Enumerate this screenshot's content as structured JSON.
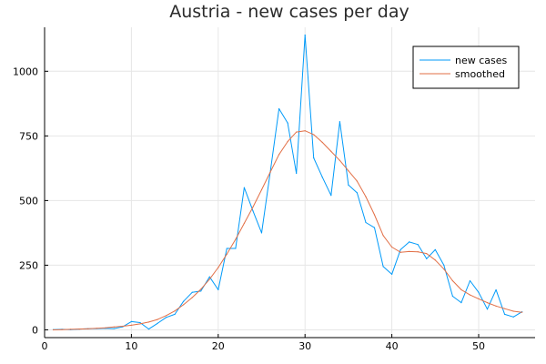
{
  "chart_data": {
    "type": "line",
    "title": "Austria - new cases per day",
    "xlabel": "",
    "ylabel": "",
    "xlim": [
      0,
      56.5
    ],
    "ylim": [
      -30,
      1170
    ],
    "xticks": [
      0,
      10,
      20,
      30,
      40,
      50
    ],
    "yticks": [
      0,
      250,
      500,
      750,
      1000
    ],
    "grid": true,
    "legend_position": "top-right",
    "series": [
      {
        "name": "new cases",
        "color": "#009AF9",
        "x": [
          1,
          2,
          3,
          4,
          5,
          6,
          7,
          8,
          9,
          10,
          11,
          12,
          13,
          14,
          15,
          16,
          17,
          18,
          19,
          20,
          21,
          22,
          23,
          24,
          25,
          26,
          27,
          28,
          29,
          30,
          31,
          32,
          33,
          34,
          35,
          36,
          37,
          38,
          39,
          40,
          41,
          42,
          43,
          44,
          45,
          46,
          47,
          48,
          49,
          50,
          51,
          52,
          53,
          54,
          55
        ],
        "values": [
          1,
          2,
          1,
          3,
          4,
          5,
          6,
          5,
          12,
          32,
          28,
          3,
          25,
          48,
          60,
          110,
          145,
          150,
          205,
          155,
          315,
          315,
          550,
          460,
          375,
          610,
          855,
          800,
          605,
          1140,
          665,
          590,
          520,
          805,
          560,
          530,
          415,
          395,
          245,
          215,
          310,
          340,
          330,
          275,
          310,
          250,
          130,
          105,
          190,
          145,
          80,
          155,
          60,
          50,
          70
        ]
      },
      {
        "name": "smoothed",
        "color": "#E26F46",
        "x": [
          1,
          2,
          3,
          4,
          5,
          6,
          7,
          8,
          9,
          10,
          11,
          12,
          13,
          14,
          15,
          16,
          17,
          18,
          19,
          20,
          21,
          22,
          23,
          24,
          25,
          26,
          27,
          28,
          29,
          30,
          31,
          32,
          33,
          34,
          35,
          36,
          37,
          38,
          39,
          40,
          41,
          42,
          43,
          44,
          45,
          46,
          47,
          48,
          49,
          50,
          51,
          52,
          53,
          54,
          55
        ],
        "values": [
          0,
          1,
          2,
          3,
          4,
          6,
          8,
          11,
          14,
          18,
          23,
          30,
          40,
          55,
          73,
          97,
          125,
          157,
          196,
          241,
          293,
          350,
          412,
          475,
          542,
          610,
          678,
          728,
          765,
          770,
          755,
          725,
          690,
          655,
          615,
          575,
          515,
          445,
          365,
          320,
          300,
          303,
          302,
          295,
          270,
          235,
          190,
          155,
          135,
          120,
          105,
          92,
          82,
          72,
          68
        ]
      }
    ]
  }
}
